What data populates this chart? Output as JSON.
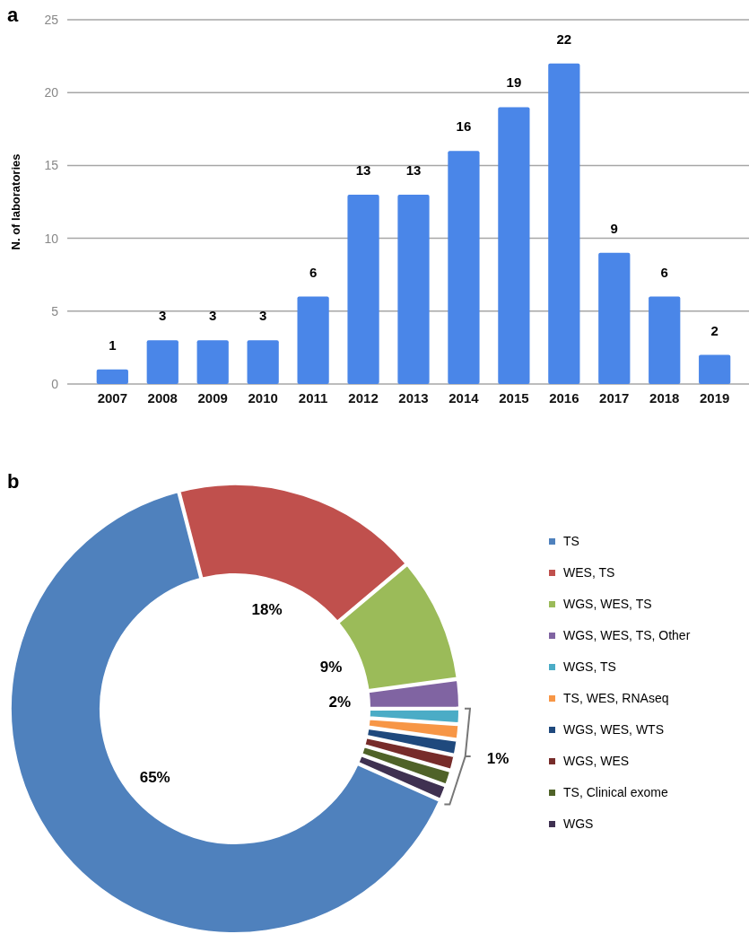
{
  "chart_data": [
    {
      "type": "bar",
      "title": "a",
      "ylabel": "N. of laboratories",
      "categories": [
        "2007",
        "2008",
        "2009",
        "2010",
        "2011",
        "2012",
        "2013",
        "2014",
        "2015",
        "2016",
        "2017",
        "2018",
        "2019"
      ],
      "values": [
        1,
        3,
        3,
        3,
        6,
        13,
        13,
        16,
        19,
        22,
        9,
        6,
        2
      ],
      "color": "#4a86e8",
      "ylim": [
        0,
        25
      ],
      "yticks": [
        0,
        5,
        10,
        15,
        20,
        25
      ],
      "grid": "y",
      "data_labels": true
    },
    {
      "type": "donut",
      "title": "b",
      "categories": [
        "TS",
        "WES, TS",
        "WGS, WES, TS",
        "WGS, WES, TS, Other",
        "WGS, TS",
        "TS, WES, RNAseq",
        "WGS, WES, WTS",
        "WGS, WES",
        "TS, Clinical exome",
        "WGS"
      ],
      "values": [
        65,
        18,
        9,
        2,
        1,
        1,
        1,
        1,
        1,
        1
      ],
      "colors": [
        "#4f81bd",
        "#c0504d",
        "#9bbb59",
        "#8064a2",
        "#4bacc6",
        "#f79646",
        "#1f497d",
        "#772c2a",
        "#4f6228",
        "#3f3151"
      ],
      "value_labels": [
        "65%",
        "18%",
        "9%",
        "2%",
        null,
        null,
        null,
        null,
        null,
        null
      ],
      "annotations": [
        "1%"
      ],
      "legend": "right"
    }
  ]
}
